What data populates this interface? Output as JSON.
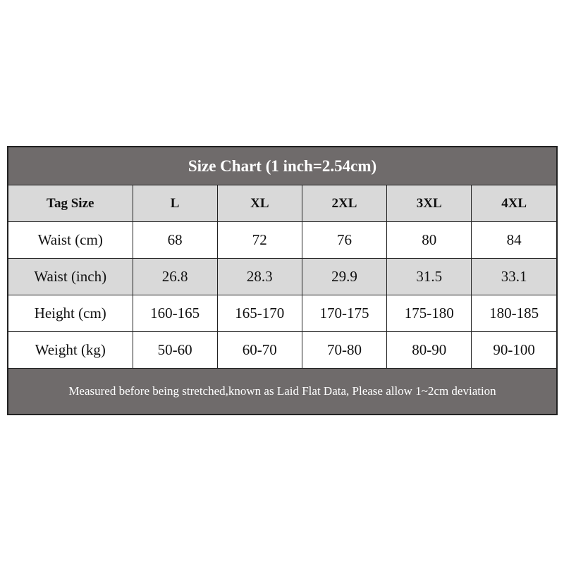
{
  "title": "Size Chart (1 inch=2.54cm)",
  "header": [
    "Tag Size",
    "L",
    "XL",
    "2XL",
    "3XL",
    "4XL"
  ],
  "rows": [
    [
      "Waist (cm)",
      "68",
      "72",
      "76",
      "80",
      "84"
    ],
    [
      "Waist (inch)",
      "26.8",
      "28.3",
      "29.9",
      "31.5",
      "33.1"
    ],
    [
      "Height (cm)",
      "160-165",
      "165-170",
      "170-175",
      "175-180",
      "180-185"
    ],
    [
      "Weight (kg)",
      "50-60",
      "60-70",
      "70-80",
      "80-90",
      "90-100"
    ]
  ],
  "footer": "Measured before being stretched,known as Laid Flat Data, Please allow 1~2cm deviation",
  "colors": {
    "title_bg": "#6f6b6b",
    "header_bg": "#d9d9d9",
    "border": "#222222"
  }
}
